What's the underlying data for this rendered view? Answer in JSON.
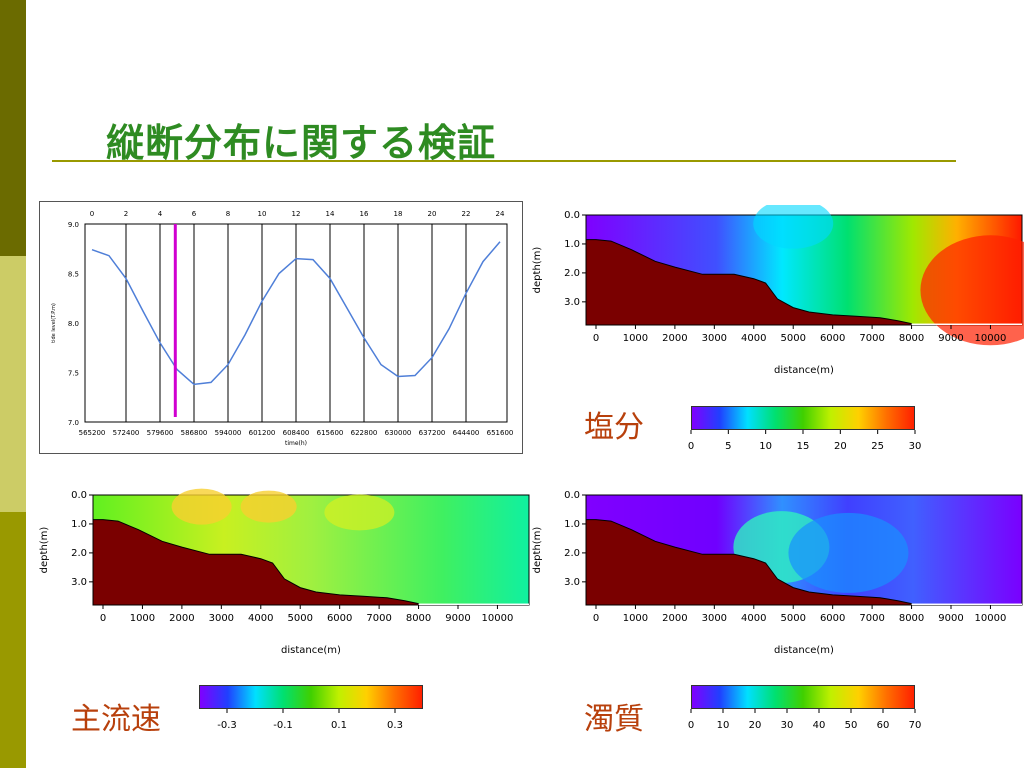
{
  "title": "縦断分布に関する検証",
  "colors": {
    "title": "#2e8b22",
    "sidebar_dark": "#6b6b00",
    "sidebar_light": "#cccc66",
    "sidebar_mid": "#999900",
    "caption": "#b8400c",
    "bed": "#7a0000"
  },
  "chart_data": [
    {
      "type": "line",
      "name_label": "tide",
      "ylabel": "tide level(T.P.m)",
      "xlabel": "time(h)",
      "x_ticks_bottom": [
        "565200",
        "572400",
        "579600",
        "586800",
        "594000",
        "601200",
        "608400",
        "615600",
        "622800",
        "630000",
        "637200",
        "644400",
        "651600"
      ],
      "x_ticks_top": [
        "0",
        "2",
        "4",
        "6",
        "8",
        "10",
        "12",
        "14",
        "16",
        "18",
        "20",
        "22",
        "24"
      ],
      "y_ticks": [
        "9.0",
        "8.5",
        "8.0",
        "7.5",
        "7.0"
      ],
      "ylim": [
        7.0,
        9.0
      ],
      "xlim": [
        0,
        24
      ],
      "series": [
        {
          "x": [
            0,
            1,
            2,
            3,
            4,
            5,
            6,
            7,
            8,
            9,
            10,
            11,
            12,
            13,
            14,
            15,
            16,
            17,
            18,
            19,
            20,
            21,
            22,
            23,
            24
          ],
          "y": [
            8.74,
            8.68,
            8.45,
            8.12,
            7.8,
            7.53,
            7.38,
            7.4,
            7.58,
            7.88,
            8.22,
            8.5,
            8.65,
            8.64,
            8.45,
            8.15,
            7.85,
            7.58,
            7.46,
            7.47,
            7.65,
            7.94,
            8.3,
            8.62,
            8.82
          ],
          "color": "#4f7fd8"
        }
      ],
      "marker_x": 4.9,
      "marker_color": "#d000d0"
    },
    {
      "type": "heatmap",
      "caption": "塩分",
      "ylabel": "depth(m)",
      "xlabel": "distance(m)",
      "y_ticks": [
        "0.0",
        "1.0",
        "2.0",
        "3.0"
      ],
      "x_ticks": [
        "0",
        "1000",
        "2000",
        "3000",
        "4000",
        "5000",
        "6000",
        "7000",
        "8000",
        "9000",
        "10000"
      ],
      "colorbar_ticks": [
        "0",
        "5",
        "10",
        "15",
        "20",
        "25",
        "30"
      ],
      "colorbar_range": [
        0,
        30
      ]
    },
    {
      "type": "heatmap",
      "caption": "主流速",
      "ylabel": "depth(m)",
      "xlabel": "distance(m)",
      "y_ticks": [
        "0.0",
        "1.0",
        "2.0",
        "3.0"
      ],
      "x_ticks": [
        "0",
        "1000",
        "2000",
        "3000",
        "4000",
        "5000",
        "6000",
        "7000",
        "8000",
        "9000",
        "10000"
      ],
      "colorbar_ticks": [
        "-0.3",
        "-0.1",
        "0.1",
        "0.3"
      ],
      "colorbar_range": [
        -0.4,
        0.4
      ]
    },
    {
      "type": "heatmap",
      "caption": "濁質",
      "ylabel": "depth(m)",
      "xlabel": "distance(m)",
      "y_ticks": [
        "0.0",
        "1.0",
        "2.0",
        "3.0"
      ],
      "x_ticks": [
        "0",
        "1000",
        "2000",
        "3000",
        "4000",
        "5000",
        "6000",
        "7000",
        "8000",
        "9000",
        "10000"
      ],
      "colorbar_ticks": [
        "0",
        "10",
        "20",
        "30",
        "40",
        "50",
        "60",
        "70"
      ],
      "colorbar_range": [
        0,
        70
      ]
    }
  ]
}
